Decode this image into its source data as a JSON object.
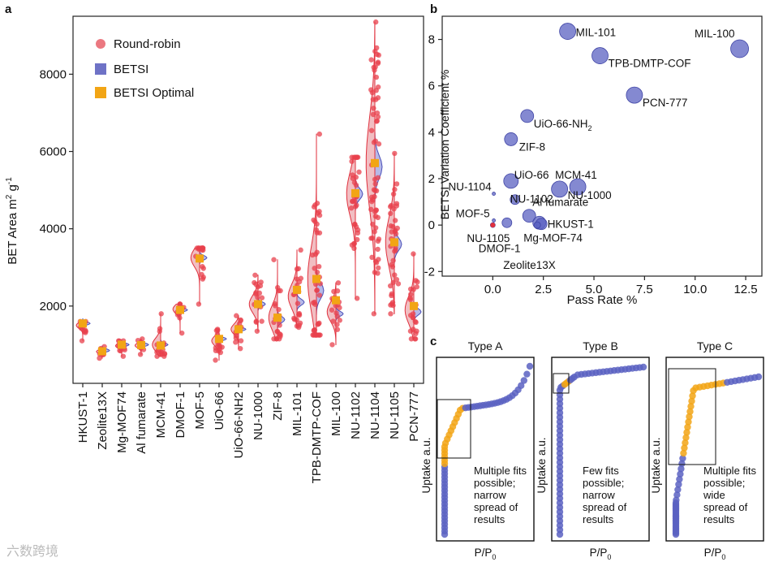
{
  "panel_labels": {
    "a": "a",
    "b": "b",
    "c": "c"
  },
  "watermark": "六数跨境",
  "chart_data": [
    {
      "type": "violin",
      "panel": "a",
      "ylabel_main": "BET Area m",
      "ylabel_sup1": "2",
      "ylabel_mid": " g",
      "ylabel_sup2": "-1",
      "ylim": [
        0,
        9500
      ],
      "yticks": [
        2000,
        4000,
        6000,
        8000
      ],
      "legend": [
        {
          "label": "Round-robin",
          "marker": "circle",
          "color": "#e8606a"
        },
        {
          "label": "BETSI",
          "marker": "square",
          "color": "#6e72c6"
        },
        {
          "label": "BETSI Optimal",
          "marker": "square",
          "color": "#f2a515"
        }
      ],
      "categories": [
        "HKUST-1",
        "Zeolite13X",
        "Mg-MOF74",
        "Al fumarate",
        "MCM-41",
        "DMOF-1",
        "MOF-5",
        "UiO-66",
        "UiO-66-NH2",
        "NU-1000",
        "ZIF-8",
        "MIL-101",
        "TPB-DMTP-COF",
        "MIL-100",
        "NU-1102",
        "NU-1104",
        "NU-1105",
        "PCN-777"
      ],
      "round_robin": [
        {
          "min": 1100,
          "max": 1600,
          "median": 1500
        },
        {
          "min": 650,
          "max": 950,
          "median": 820
        },
        {
          "min": 700,
          "max": 1100,
          "median": 970
        },
        {
          "min": 750,
          "max": 1150,
          "median": 980
        },
        {
          "min": 700,
          "max": 1800,
          "median": 1000
        },
        {
          "min": 1300,
          "max": 2050,
          "median": 1920
        },
        {
          "min": 2050,
          "max": 3500,
          "median": 3250
        },
        {
          "min": 600,
          "max": 1400,
          "median": 1100
        },
        {
          "min": 900,
          "max": 1750,
          "median": 1400
        },
        {
          "min": 1350,
          "max": 2800,
          "median": 2050
        },
        {
          "min": 1150,
          "max": 3200,
          "median": 1700
        },
        {
          "min": 1450,
          "max": 3450,
          "median": 2250
        },
        {
          "min": 1250,
          "max": 6450,
          "median": 2700
        },
        {
          "min": 1000,
          "max": 2600,
          "median": 1850
        },
        {
          "min": 2200,
          "max": 5850,
          "median": 4900
        },
        {
          "min": 1800,
          "max": 9350,
          "median": 5700
        },
        {
          "min": 1800,
          "max": 5950,
          "median": 3650
        },
        {
          "min": 1150,
          "max": 3350,
          "median": 1900
        }
      ],
      "betsi": [
        1550,
        850,
        1000,
        1000,
        1000,
        1900,
        3250,
        1150,
        1400,
        2050,
        1650,
        2100,
        2400,
        1800,
        4900,
        5600,
        3600,
        1850
      ],
      "betsi_optimal": [
        1550,
        830,
        1000,
        990,
        980,
        1900,
        3230,
        1150,
        1400,
        2050,
        1700,
        2420,
        2700,
        2150,
        4920,
        5700,
        3650,
        2000
      ]
    },
    {
      "type": "scatter",
      "panel": "b",
      "xlabel": "Pass Rate %",
      "ylabel": "BETSI Variation Coefficient %",
      "xlim": [
        -2.5,
        13.3
      ],
      "ylim": [
        -2.2,
        9.0
      ],
      "xticks": [
        0.0,
        2.5,
        5.0,
        7.5,
        10.0,
        12.5
      ],
      "xtick_labels": [
        "0.0",
        "2.5",
        "5.0",
        "7.5",
        "10.0",
        "12.5"
      ],
      "yticks": [
        -2,
        0,
        2,
        4,
        6,
        8
      ],
      "points": [
        {
          "label": "MIL-101",
          "x": 3.7,
          "y": 8.35,
          "size": 10
        },
        {
          "label": "MIL-100",
          "x": 12.2,
          "y": 7.6,
          "size": 11
        },
        {
          "label": "TPB-DMTP-COF",
          "x": 5.3,
          "y": 7.3,
          "size": 10
        },
        {
          "label": "PCN-777",
          "x": 7.0,
          "y": 5.6,
          "size": 10
        },
        {
          "label": "UiO-66-NH",
          "x": 1.7,
          "y": 4.7,
          "size": 8
        },
        {
          "label": "ZIF-8",
          "x": 0.9,
          "y": 3.7,
          "size": 8
        },
        {
          "label": "UiO-66",
          "x": 0.9,
          "y": 1.9,
          "size": 9
        },
        {
          "label": "MCM-41",
          "x": 4.2,
          "y": 1.65,
          "size": 10
        },
        {
          "label": "NU-1000",
          "x": 3.3,
          "y": 1.55,
          "size": 10
        },
        {
          "label": "NU-1104",
          "x": 0.05,
          "y": 1.35,
          "size": 2
        },
        {
          "label": "NU-1102",
          "x": 1.1,
          "y": 1.1,
          "size": 6
        },
        {
          "label": "Al fumarate",
          "x": 1.8,
          "y": 0.4,
          "size": 8
        },
        {
          "label": "MOF-5",
          "x": 0.05,
          "y": 0.2,
          "size": 2
        },
        {
          "label": "HKUST-1",
          "x": 2.3,
          "y": 0.1,
          "size": 8
        },
        {
          "label": "Mg-MOF-74",
          "x": 2.4,
          "y": 0.05,
          "size": 7
        },
        {
          "label": "NU-1105",
          "x": 0.0,
          "y": 0.0,
          "size": 3
        },
        {
          "label": "DMOF-1",
          "x": 0.7,
          "y": 0.1,
          "size": 6
        },
        {
          "label": "Zeolite13X",
          "x": 2.2,
          "y": 0.0,
          "size": 4
        }
      ],
      "sub_2": "2"
    },
    {
      "type": "isotherm_schematic",
      "panel": "c",
      "panels": [
        {
          "title": "Type A",
          "annotation": [
            "Multiple fits",
            "possible;",
            "narrow",
            "spread of",
            "results"
          ]
        },
        {
          "title": "Type B",
          "annotation": [
            "Few fits",
            "possible;",
            "narrow",
            "spread of",
            "results"
          ]
        },
        {
          "title": "Type C",
          "annotation": [
            "Multiple fits",
            "possible;",
            "wide",
            "spread of",
            "results"
          ]
        }
      ],
      "ylabel": "Uptake a.u.",
      "xlabel_main": "P/P",
      "xlabel_sub": "0",
      "colors": {
        "blue": "#5b61c2",
        "orange": "#f2a515"
      }
    }
  ]
}
